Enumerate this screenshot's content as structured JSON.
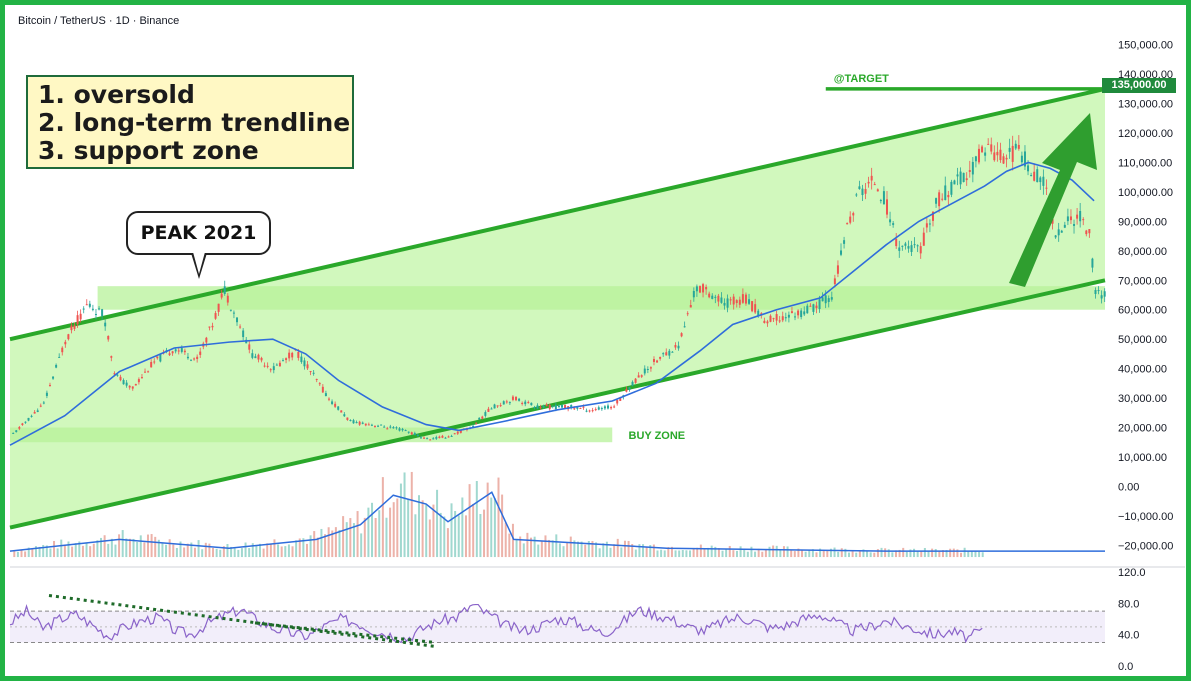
{
  "header": {
    "symbol": "Bitcoin / TetherUS · 1D · Binance"
  },
  "notes": [
    "1. oversold",
    "2. long-term trendline",
    "3. support zone"
  ],
  "peak_label": "PEAK 2021",
  "target_label": "@TARGET",
  "target_value": "135,000.00",
  "buy_zone_label": "BUY ZONE",
  "colors": {
    "channel_fill": "#ccf7b6",
    "channel_line": "#2aa82a",
    "zone_fill": "#b7f29a",
    "ma_line": "#2f6ddb",
    "rsi_line": "#8a63c9",
    "candle_up": "#26a69a",
    "candle_down": "#ef5350",
    "frame": "#22b345"
  },
  "chart_data": [
    {
      "type": "line",
      "name": "price",
      "ylim": [
        -25000,
        155000
      ],
      "ticks": [
        "150,000.00",
        "140,000.00",
        "130,000.00",
        "120,000.00",
        "110,000.00",
        "100,000.00",
        "90,000.00",
        "80,000.00",
        "70,000.00",
        "60,000.00",
        "50,000.00",
        "40,000.00",
        "30,000.00",
        "20,000.00",
        "10,000.00",
        "0.00",
        "−10,000.00",
        "−20,000.00"
      ],
      "tick_values": [
        150000,
        140000,
        130000,
        120000,
        110000,
        100000,
        90000,
        80000,
        70000,
        60000,
        50000,
        40000,
        30000,
        20000,
        10000,
        0,
        -10000,
        -20000
      ],
      "x_range": [
        0,
        100
      ],
      "price_path": [
        [
          0,
          17000
        ],
        [
          3,
          28000
        ],
        [
          5,
          50000
        ],
        [
          7,
          62000
        ],
        [
          8.5,
          58000
        ],
        [
          9.5,
          38000
        ],
        [
          11,
          33000
        ],
        [
          13,
          42000
        ],
        [
          15,
          47000
        ],
        [
          17,
          43000
        ],
        [
          18.5,
          56000
        ],
        [
          19.5,
          67000
        ],
        [
          20.5,
          58000
        ],
        [
          22,
          45000
        ],
        [
          24,
          40000
        ],
        [
          26,
          46000
        ],
        [
          27,
          41000
        ],
        [
          29,
          30000
        ],
        [
          31,
          22000
        ],
        [
          33,
          21000
        ],
        [
          36,
          19000
        ],
        [
          38,
          16000
        ],
        [
          40,
          17000
        ],
        [
          42,
          20000
        ],
        [
          44,
          27000
        ],
        [
          46,
          30000
        ],
        [
          48,
          27000
        ],
        [
          51,
          27000
        ],
        [
          53,
          26000
        ],
        [
          55,
          27000
        ],
        [
          57,
          36000
        ],
        [
          59,
          43000
        ],
        [
          61,
          48000
        ],
        [
          62.5,
          67000
        ],
        [
          63.5,
          67000
        ],
        [
          65,
          62000
        ],
        [
          67,
          64000
        ],
        [
          69,
          56000
        ],
        [
          71,
          58000
        ],
        [
          73,
          60000
        ],
        [
          75,
          65000
        ],
        [
          76.5,
          90000
        ],
        [
          77.5,
          100000
        ],
        [
          79,
          104000
        ],
        [
          80,
          95000
        ],
        [
          81,
          82000
        ],
        [
          83,
          80000
        ],
        [
          84.5,
          96000
        ],
        [
          86,
          102000
        ],
        [
          87.5,
          106000
        ],
        [
          89,
          116000
        ],
        [
          90.5,
          112000
        ],
        [
          92,
          114000
        ],
        [
          93,
          109000
        ],
        [
          94.5,
          102000
        ],
        [
          95.5,
          85000
        ],
        [
          96.5,
          90000
        ],
        [
          97.5,
          92000
        ],
        [
          98.5,
          86000
        ],
        [
          99,
          66000
        ],
        [
          100,
          65000
        ]
      ],
      "ma_path": [
        [
          0,
          14000
        ],
        [
          5,
          24000
        ],
        [
          10,
          39000
        ],
        [
          15,
          47000
        ],
        [
          20,
          49000
        ],
        [
          24,
          50000
        ],
        [
          27,
          45000
        ],
        [
          30,
          36000
        ],
        [
          34,
          27000
        ],
        [
          38,
          21000
        ],
        [
          41,
          19000
        ],
        [
          45,
          22000
        ],
        [
          50,
          26000
        ],
        [
          55,
          29000
        ],
        [
          59,
          35000
        ],
        [
          63,
          46000
        ],
        [
          66,
          55000
        ],
        [
          70,
          60000
        ],
        [
          74,
          64000
        ],
        [
          77,
          73000
        ],
        [
          80,
          82000
        ],
        [
          83,
          90000
        ],
        [
          86,
          96000
        ],
        [
          89,
          102000
        ],
        [
          91,
          107000
        ],
        [
          93,
          110000
        ],
        [
          95,
          108000
        ],
        [
          97,
          104000
        ],
        [
          99,
          97000
        ]
      ],
      "channel_upper": [
        [
          0,
          50000
        ],
        [
          100,
          135000
        ]
      ],
      "channel_lower": [
        [
          0,
          -14000
        ],
        [
          100,
          70000
        ]
      ],
      "zones": [
        {
          "from_x": 8,
          "to_x": 100,
          "low": 60000,
          "high": 68000
        },
        {
          "from_x": 0,
          "to_x": 55,
          "low": 15000,
          "high": 20000
        }
      ],
      "target_level": 135000,
      "volume_ma_path": [
        [
          0,
          -22000
        ],
        [
          10,
          -18000
        ],
        [
          20,
          -21000
        ],
        [
          28,
          -18000
        ],
        [
          32,
          -13000
        ],
        [
          35,
          -3000
        ],
        [
          38,
          -6000
        ],
        [
          40,
          -12000
        ],
        [
          44,
          -2000
        ],
        [
          46,
          -18000
        ],
        [
          60,
          -21000
        ],
        [
          80,
          -22000
        ],
        [
          100,
          -22000
        ]
      ]
    },
    {
      "type": "line",
      "name": "RSI",
      "ylim": [
        0,
        120
      ],
      "ticks": [
        "120.0",
        "80.0",
        "40.0",
        "0.0"
      ],
      "tick_values": [
        120,
        80,
        40,
        0
      ],
      "bands": [
        70,
        30
      ],
      "values": [
        55,
        70,
        48,
        60,
        66,
        52,
        38,
        50,
        58,
        62,
        45,
        40,
        55,
        65,
        72,
        58,
        48,
        42,
        38,
        50,
        60,
        55,
        45,
        40,
        35,
        48,
        58,
        62,
        78,
        65,
        52,
        45,
        50,
        60,
        58,
        48,
        42,
        55,
        72,
        66,
        60,
        50,
        45,
        55,
        62,
        58,
        48,
        52,
        60,
        66,
        55,
        45,
        50,
        58,
        52,
        46,
        40,
        44,
        36,
        48
      ]
    }
  ]
}
